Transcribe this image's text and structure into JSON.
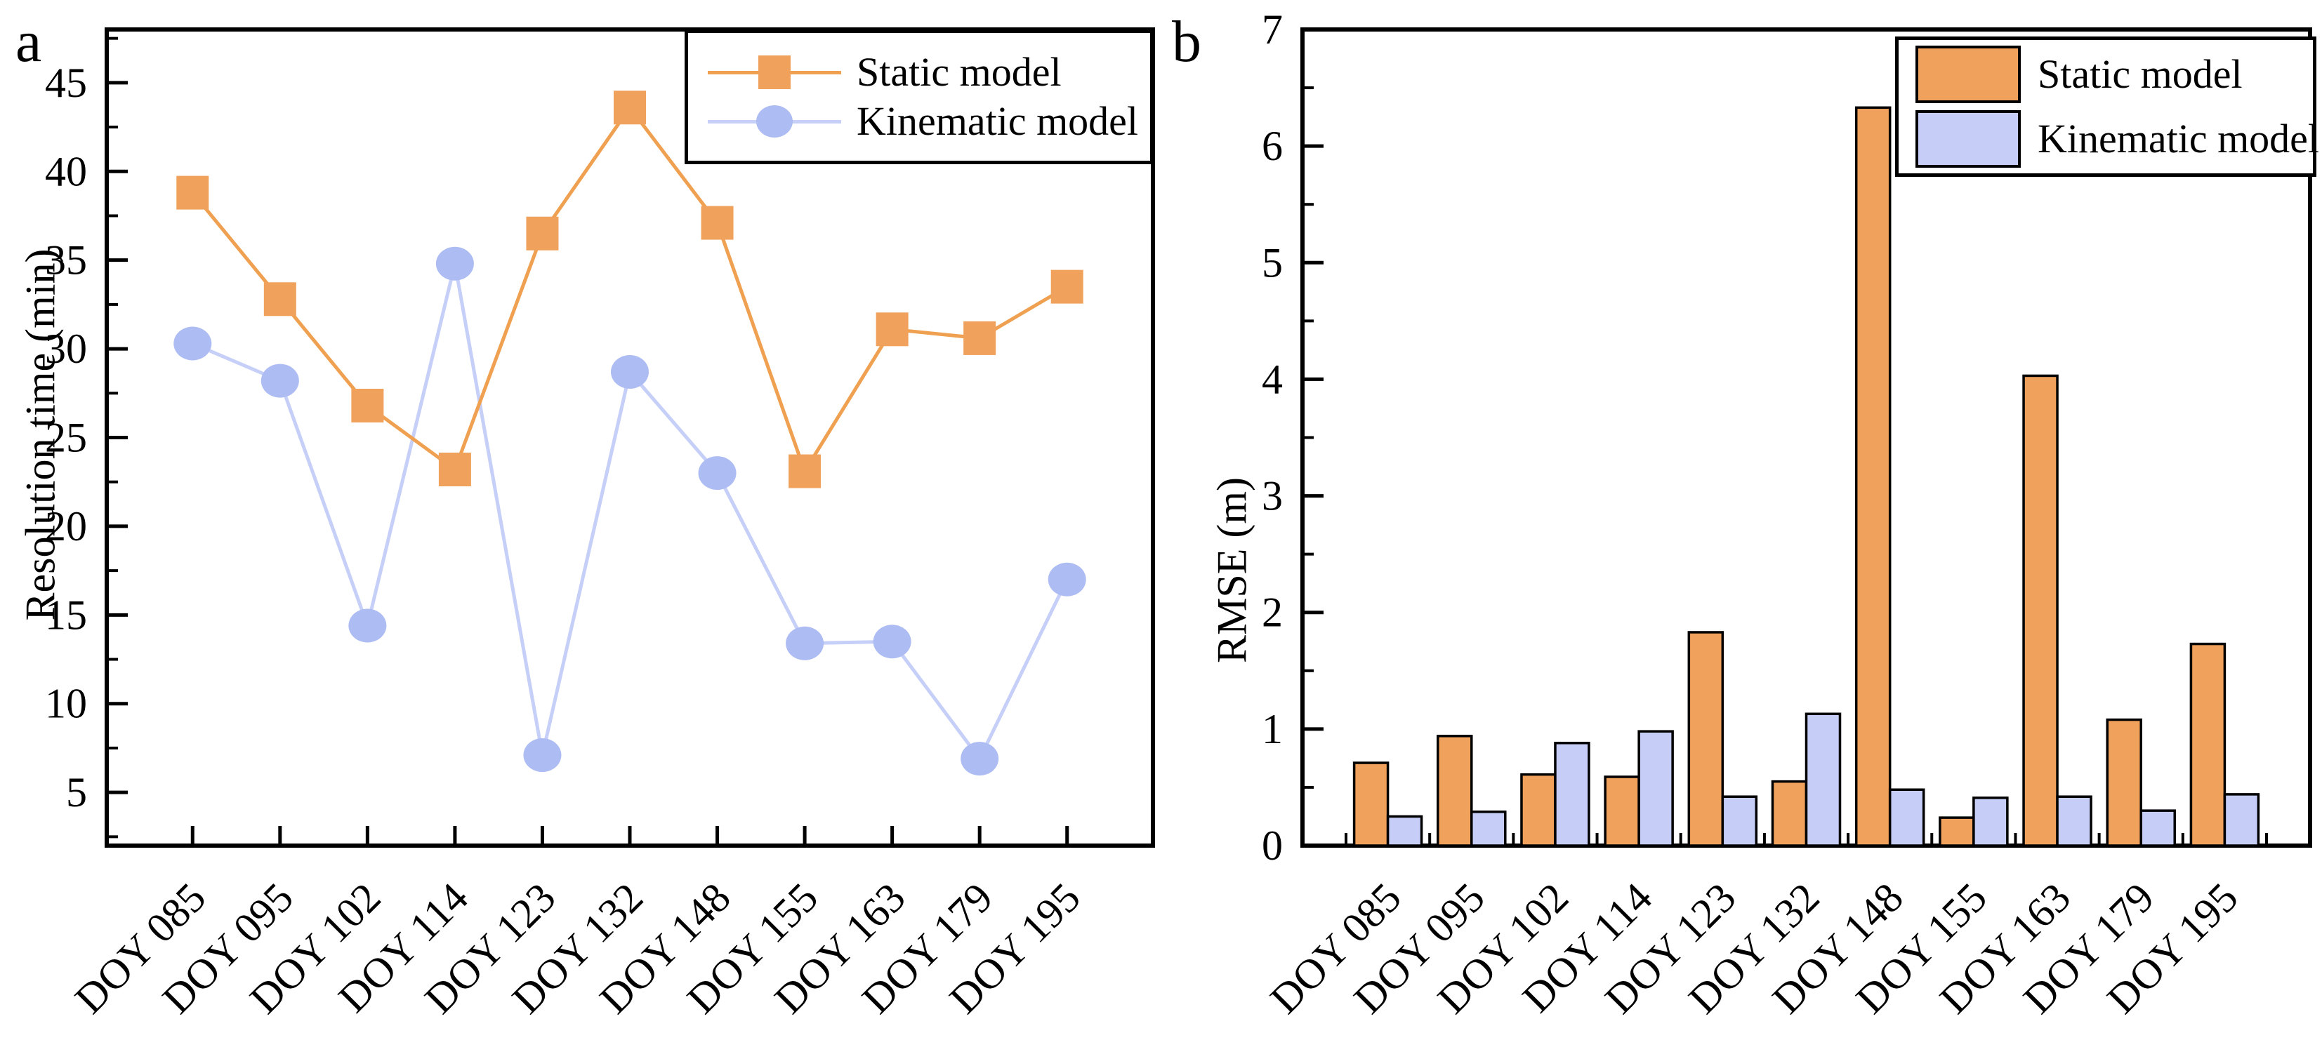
{
  "figure": {
    "background": "#ffffff",
    "axis_color": "#000000"
  },
  "chart_data": [
    {
      "panel_letter": "a",
      "type": "line",
      "title": "",
      "xlabel": "",
      "ylabel": "Resolution time (min)",
      "ylim": [
        2,
        48
      ],
      "yticks": [
        5,
        10,
        15,
        20,
        25,
        30,
        35,
        40,
        45
      ],
      "y_minor_step": 2.5,
      "grid": false,
      "legend_position": "top-right-inside",
      "categories": [
        "DOY 085",
        "DOY 095",
        "DOY 102",
        "DOY 114",
        "DOY 123",
        "DOY 132",
        "DOY 148",
        "DOY 155",
        "DOY 163",
        "DOY 179",
        "DOY 195"
      ],
      "series": [
        {
          "name": "Static model",
          "marker": "square",
          "color": "#F0A25C",
          "line_color": "#EFA050",
          "values": [
            38.8,
            32.8,
            26.8,
            23.2,
            36.5,
            43.6,
            37.1,
            23.1,
            31.1,
            30.6,
            33.5
          ]
        },
        {
          "name": "Kinematic model",
          "marker": "circle",
          "color": "#ADBCF2",
          "line_color": "#C6CFF7",
          "values": [
            30.3,
            28.2,
            14.4,
            34.8,
            7.1,
            28.7,
            23.0,
            13.4,
            13.5,
            6.9,
            17.0
          ]
        }
      ]
    },
    {
      "panel_letter": "b",
      "type": "bar",
      "title": "",
      "xlabel": "",
      "ylabel": "RMSE (m)",
      "ylim": [
        0,
        7
      ],
      "yticks": [
        0,
        1,
        2,
        3,
        4,
        5,
        6,
        7
      ],
      "y_minor_step": 0.5,
      "grid": false,
      "legend_position": "top-right-inside",
      "bar_edge_color": "#000000",
      "categories": [
        "DOY 085",
        "DOY 095",
        "DOY 102",
        "DOY 114",
        "DOY 123",
        "DOY 132",
        "DOY 148",
        "DOY 155",
        "DOY 163",
        "DOY 179",
        "DOY 195"
      ],
      "series": [
        {
          "name": "Static model",
          "color": "#F0A25C",
          "values": [
            0.71,
            0.94,
            0.61,
            0.59,
            1.83,
            0.55,
            6.33,
            0.24,
            4.03,
            1.08,
            1.73
          ]
        },
        {
          "name": "Kinematic model",
          "color": "#C6CDF6",
          "values": [
            0.25,
            0.29,
            0.88,
            0.98,
            0.42,
            1.13,
            0.48,
            0.41,
            0.42,
            0.3,
            0.44
          ]
        }
      ]
    }
  ]
}
